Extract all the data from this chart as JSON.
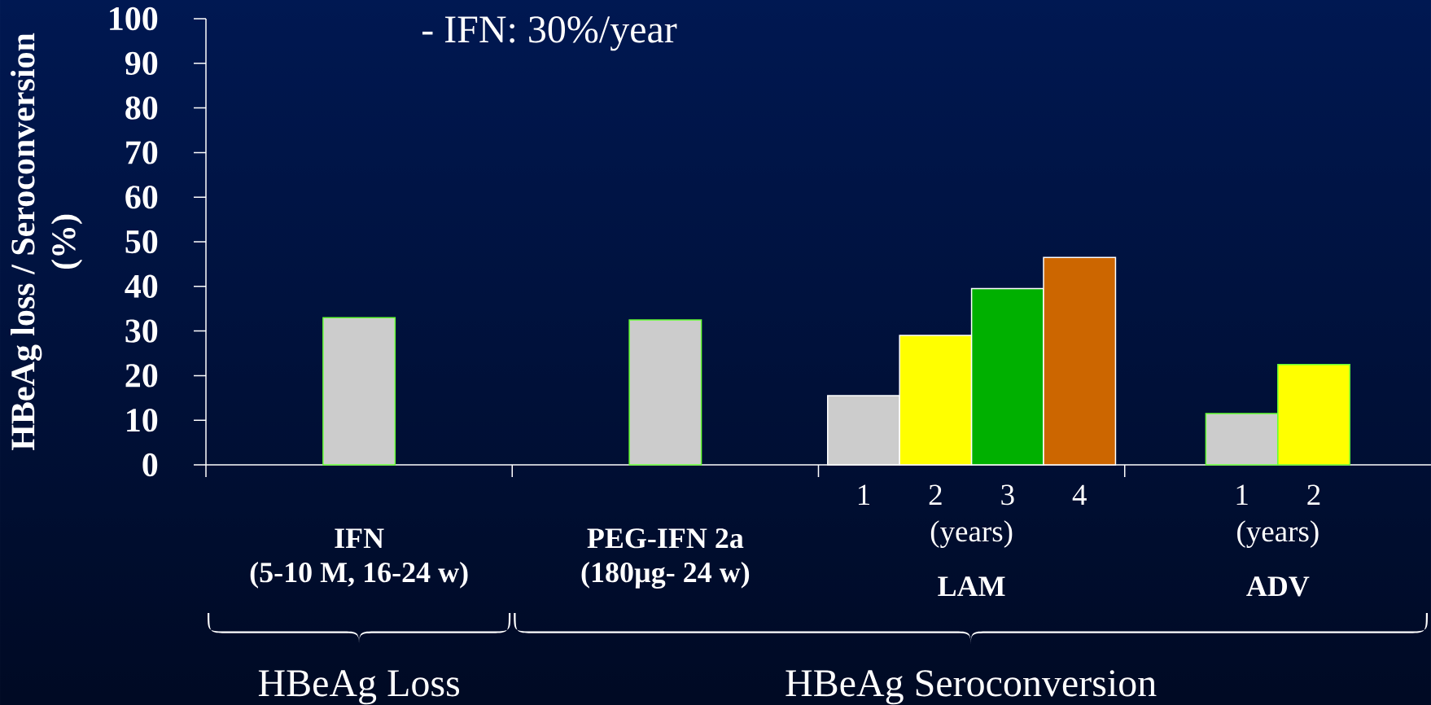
{
  "chart_data": {
    "type": "bar",
    "categories": [
      "IFN",
      "PEG-IFN 2a",
      "LAM",
      "ADV"
    ],
    "series": [
      {
        "name": "1",
        "color": "#cccccc",
        "values": [
          33,
          32.5,
          15.5,
          11.5
        ]
      },
      {
        "name": "2",
        "color": "#ffff00",
        "values": [
          null,
          null,
          29,
          22.5
        ]
      },
      {
        "name": "3",
        "color": "#00b000",
        "values": [
          null,
          null,
          39.5,
          null
        ]
      },
      {
        "name": "4",
        "color": "#cc6600",
        "values": [
          null,
          null,
          46.5,
          null
        ]
      }
    ],
    "ylabel": "HBeAg loss / Seroconversion (%)",
    "ylim": [
      0,
      100
    ],
    "yticks": [
      0,
      10,
      20,
      30,
      40,
      50,
      60,
      70,
      80,
      90,
      100
    ],
    "annotations": [
      "- IFN: 30%/year",
      "(5-10 M, 16-24 w)",
      "(180µg- 24 w)",
      "(years)",
      "(years)",
      "HBeAg Loss",
      "HBeAg Seroconversion"
    ]
  }
}
